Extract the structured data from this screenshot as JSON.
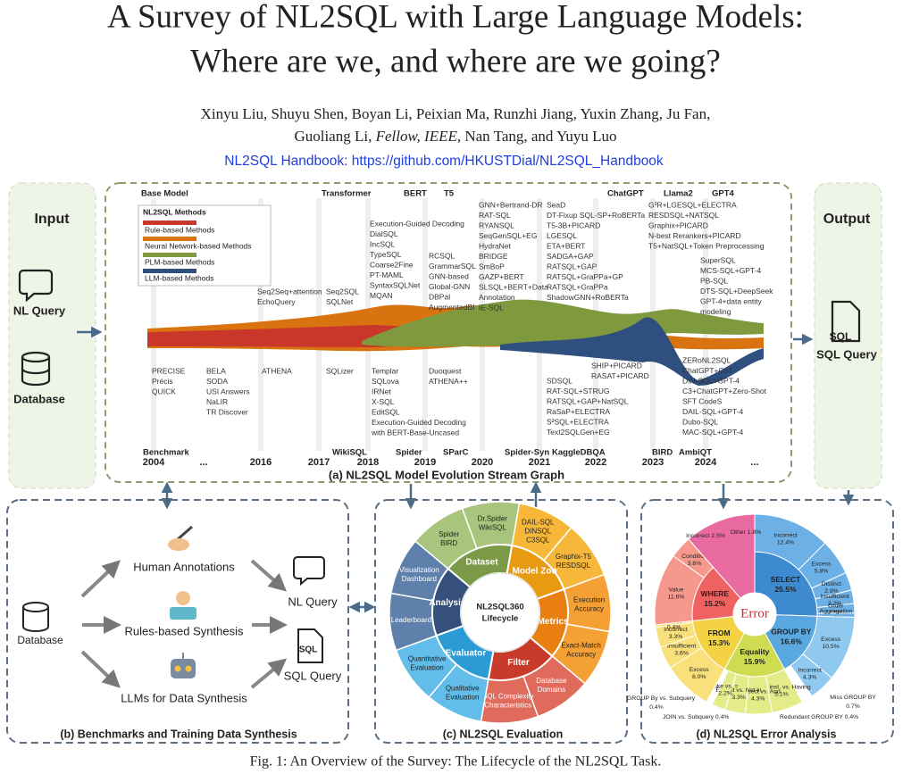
{
  "title": [
    "A Survey of NL2SQL with Large Language Models:",
    "Where are we, and where are we going?"
  ],
  "authors_line1": "Xinyu Liu, Shuyu Shen, Boyan Li, Peixian Ma, Runzhi Jiang, Yuxin Zhang, Ju Fan,",
  "authors_line2": [
    "Guoliang Li, ",
    "Fellow, IEEE",
    ", Nan Tang, and Yuyu Luo"
  ],
  "link": "NL2SQL Handbook: https://github.com/HKUSTDial/NL2SQL_Handbook",
  "panel_a": {
    "input_title": "Input",
    "input_items": [
      "NL Query",
      "Database"
    ],
    "output_title": "Output",
    "output_icon": "SQL",
    "output_item": "SQL Query",
    "eras": [
      "Base Model",
      "Transformer",
      "BERT",
      "T5",
      "ChatGPT",
      "Llama2",
      "GPT4"
    ],
    "legend": {
      "title": "NL2SQL Methods",
      "items": [
        "Rule-based Methods",
        "Neural Network-based Methods",
        "PLM-based Methods",
        "LLM-based Methods"
      ]
    },
    "years": [
      "2004",
      "...",
      "2016",
      "2017",
      "2018",
      "2019",
      "2020",
      "2021",
      "2022",
      "2023",
      "2024",
      "..."
    ],
    "methods_above": [
      [
        "Seq2Seq+attention",
        "EchoQuery"
      ],
      [
        "Seq2SQL",
        "SQLNet"
      ],
      [
        "Execution-Guided Decoding",
        "DialSQL",
        "IncSQL",
        "TypeSQL",
        "Coarse2Fine",
        "PT-MAML",
        "SyntaxSQLNet",
        "MQAN"
      ],
      [
        "RCSQL",
        "GrammarSQL",
        "GNN-based",
        "Global-GNN",
        "DBPal",
        "AugmentedBI"
      ],
      [
        "GNN+Bertrand-DR",
        "RAT-SQL",
        "RYANSQL",
        "SeqGenSQL+EG",
        "HydraNet",
        "BRIDGE",
        "SmBoP",
        "GAZP+BERT",
        "SLSQL+BERT+Data",
        "Annotation",
        "IE-SQL"
      ],
      [
        "SeaD",
        "DT-Fixup SQL-SP+RoBERTa",
        "T5-3B+PICARD",
        "LGESQL",
        "ETA+BERT",
        "SADGA+GAP",
        "RATSQL+GAP",
        "RATSQL+GraPPa+GP",
        "RATSQL+GraPPa",
        "ShadowGNN+RoBERTa"
      ],
      [
        "G³R+LGESQL+ELECTRA",
        "RESDSQL+NATSQL",
        "Graphix+PICARD",
        "N-best Rerankers+PICARD",
        "T5+NatSQL+Token Preprocessing"
      ],
      [
        "SuperSQL",
        "MCS-SQL+GPT-4",
        "PB-SQL",
        "DTS-SQL+DeepSeek",
        "GPT-4+data entity",
        "modeling"
      ]
    ],
    "methods_below": [
      [
        "PRECISE",
        "Précis",
        "QUICK"
      ],
      [
        "BELA",
        "SODA",
        "USI Answers",
        "NaLIR",
        "TR Discover"
      ],
      [
        "ATHENA"
      ],
      [
        "SQLizer"
      ],
      [
        "Templar",
        "SQLova",
        "IRNet",
        "X-SQL",
        "EditSQL",
        "Execution-Guided Decoding",
        "with BERT-Base-Uncased"
      ],
      [
        "Duoquest",
        "ATHENA++"
      ],
      [
        "SHIP+PICARD",
        "RASAT+PICARD"
      ],
      [
        "SDSQL",
        "RAT-SQL+STRUG",
        "RATSQL+GAP+NatSQL",
        "RaSaP+ELECTRA",
        "S²SQL+ELECTRA",
        "Text2SQLGen+EG"
      ],
      [
        "ZERoNL2SQL",
        "ChatGPT+CoT",
        "DIN-SQL+GPT-4",
        "C3+ChatGPT+Zero-Shot",
        "SFT CodeS",
        "DAIL-SQL+GPT-4",
        "Dubo-SQL",
        "MAC-SQL+GPT-4"
      ]
    ],
    "benchmarks": [
      "Benchmark",
      "WikiSQL",
      "Spider",
      "SParC",
      "Spider-Syn",
      "KaggleDBQA",
      "BIRD",
      "AmbiQT"
    ],
    "caption": "(a) NL2SQL Model Evolution Stream Graph"
  },
  "panel_b": {
    "source": "Database",
    "methods": [
      "Human Annotations",
      "Rules-based Synthesis",
      "LLMs for Data Synthesis"
    ],
    "outputs": [
      "NL Query",
      "SQL Query"
    ],
    "sql_icon": "SQL",
    "caption": "(b) Benchmarks and Training Data Synthesis"
  },
  "panel_c": {
    "center": [
      "NL2SQL360",
      "Lifecycle"
    ],
    "stages": [
      "Dataset",
      "Model Zoo",
      "Metrics",
      "Filter",
      "Evaluator",
      "Analysis"
    ],
    "items": [
      [
        "Spider",
        "BIRD"
      ],
      [
        "Dr.Spider",
        "WikiSQL"
      ],
      [
        "DAIL-SQL",
        "DINSQL",
        "C3SQL"
      ],
      [
        "Graphix-T5",
        "RESDSQL"
      ],
      [
        "Execution",
        "Accuracy"
      ],
      [
        "Exact-Match",
        "Accuracy"
      ],
      [
        "Database",
        "Domains"
      ],
      [
        "SQL Complexity",
        "Characteristics"
      ],
      [
        "Qualitative",
        "Evaluation"
      ],
      [
        "Quantitative",
        "Evaluation"
      ],
      [
        "Leaderboard"
      ],
      [
        "Visualization",
        "Dashboard"
      ]
    ],
    "caption": "(c) NL2SQL Evaluation"
  },
  "panel_d": {
    "center": "Error",
    "segments": [
      {
        "name": "SELECT",
        "value": 25.5,
        "label": "25.5%",
        "children": [
          {
            "name": "Incorrect",
            "value": 12.4,
            "label": "12.4%"
          },
          {
            "name": "Excess",
            "value": 5.8,
            "label": "5.8%"
          },
          {
            "name": "Distinct",
            "value": 2.9,
            "label": "2.9%"
          },
          {
            "name": "Insufficient",
            "value": 2.2,
            "label": "2.2%"
          },
          {
            "name": "Order",
            "value": 1.5,
            "label": "1.5%"
          },
          {
            "name": "Aggregation",
            "value": 0.7,
            "label": "0.7%"
          }
        ]
      },
      {
        "name": "GROUP BY",
        "value": 16.6,
        "label": "16.6%",
        "children": [
          {
            "name": "Excess",
            "value": 10.5,
            "label": "10.5%"
          },
          {
            "name": "Incorrect",
            "value": 4.3,
            "label": "4.3%"
          }
        ]
      },
      {
        "name": "Equality",
        "value": 15.9,
        "label": "15.9%",
        "children": [
          {
            "name": "Order inst. vs. Having",
            "value": 5.1,
            "label": "5.1%"
          },
          {
            "name": "Intersect vs. And",
            "value": 4.3,
            "label": "4.3%"
          },
          {
            "name": "Except vs. Not in",
            "value": 3.3,
            "label": "3.3%"
          },
          {
            "name": "Like vs. =",
            "value": 2.2,
            "label": "2.2%"
          }
        ]
      },
      {
        "name": "FROM",
        "value": 15.3,
        "label": "15.3%",
        "children": [
          {
            "name": "Excess",
            "value": 8.0,
            "label": "8.0%"
          },
          {
            "name": "Insufficient",
            "value": 3.6,
            "label": "3.6%"
          },
          {
            "name": "Incorrect",
            "value": 3.3,
            "label": "3.3%"
          },
          {
            "name": "Join Type",
            "value": 0.4,
            "label": "0.4%"
          }
        ]
      },
      {
        "name": "WHERE",
        "value": 15.2,
        "label": "15.2%",
        "children": [
          {
            "name": "Value",
            "value": 11.6,
            "label": "11.6%"
          },
          {
            "name": "Condition",
            "value": 3.6,
            "label": "3.6%"
          }
        ]
      }
    ],
    "small_labels": [
      "Incorrect 2.5%",
      "Other 1.8%",
      "GROUP By vs. Subquery",
      "0.4%",
      "JOIN vs. Subquery 0.4%",
      "Miss GROUP BY",
      "0.7%",
      "Redundant GROUP BY 0.4%"
    ],
    "caption": "(d) NL2SQL Error Analysis"
  },
  "caption": "Fig. 1: An Overview of the Survey: The Lifecycle of the NL2SQL Task."
}
